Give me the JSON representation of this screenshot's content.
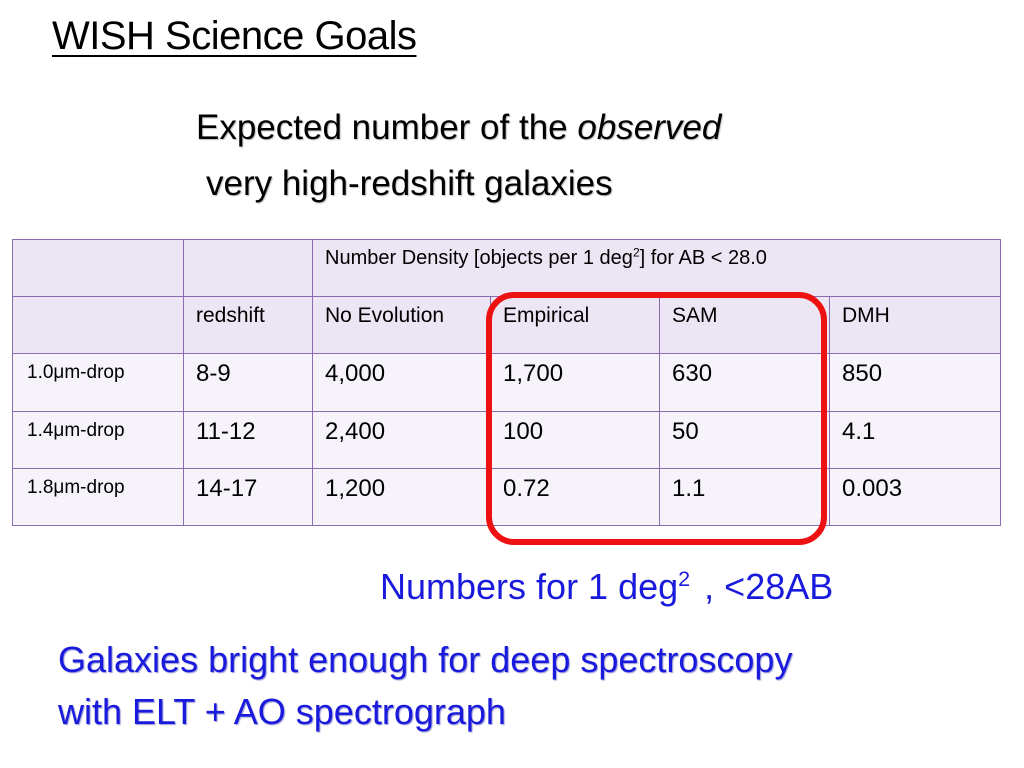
{
  "slide": {
    "title": "WISH Science Goals",
    "subtitle": {
      "line1_plain": "Expected ",
      "line1_bold": "number of the ",
      "line1_italic": "observed",
      "line2": "very high-redshift galaxies"
    },
    "table": {
      "header": {
        "density_prefix": "Number Density [objects per 1 deg",
        "density_sup": "2",
        "density_suffix": "] for AB < 28.0"
      },
      "columns": [
        "redshift",
        "No Evolution",
        "Empirical",
        "SAM",
        "DMH"
      ],
      "rows": [
        {
          "drop": "1.0μm-drop",
          "redshift": "8-9",
          "no_evolution": "4,000",
          "empirical": "1,700",
          "sam": "630",
          "dmh": "850"
        },
        {
          "drop": "1.4μm-drop",
          "redshift": "11-12",
          "no_evolution": "2,400",
          "empirical": "100",
          "sam": "50",
          "dmh": "4.1"
        },
        {
          "drop": "1.8μm-drop",
          "redshift": "14-17",
          "no_evolution": "1,200",
          "empirical": "0.72",
          "sam": "1.1",
          "dmh": "0.003"
        }
      ]
    },
    "note": {
      "prefix": "Numbers for 1 deg",
      "sup": "2",
      "suffix": ", <28AB"
    },
    "conclusion": {
      "line1": "Galaxies bright enough for deep spectroscopy",
      "line2": "with ELT + AO spectrograph"
    },
    "colors": {
      "highlight_box": "#ee1111",
      "table_border": "#8a6cb0",
      "note_text": "#1a1adc"
    }
  }
}
